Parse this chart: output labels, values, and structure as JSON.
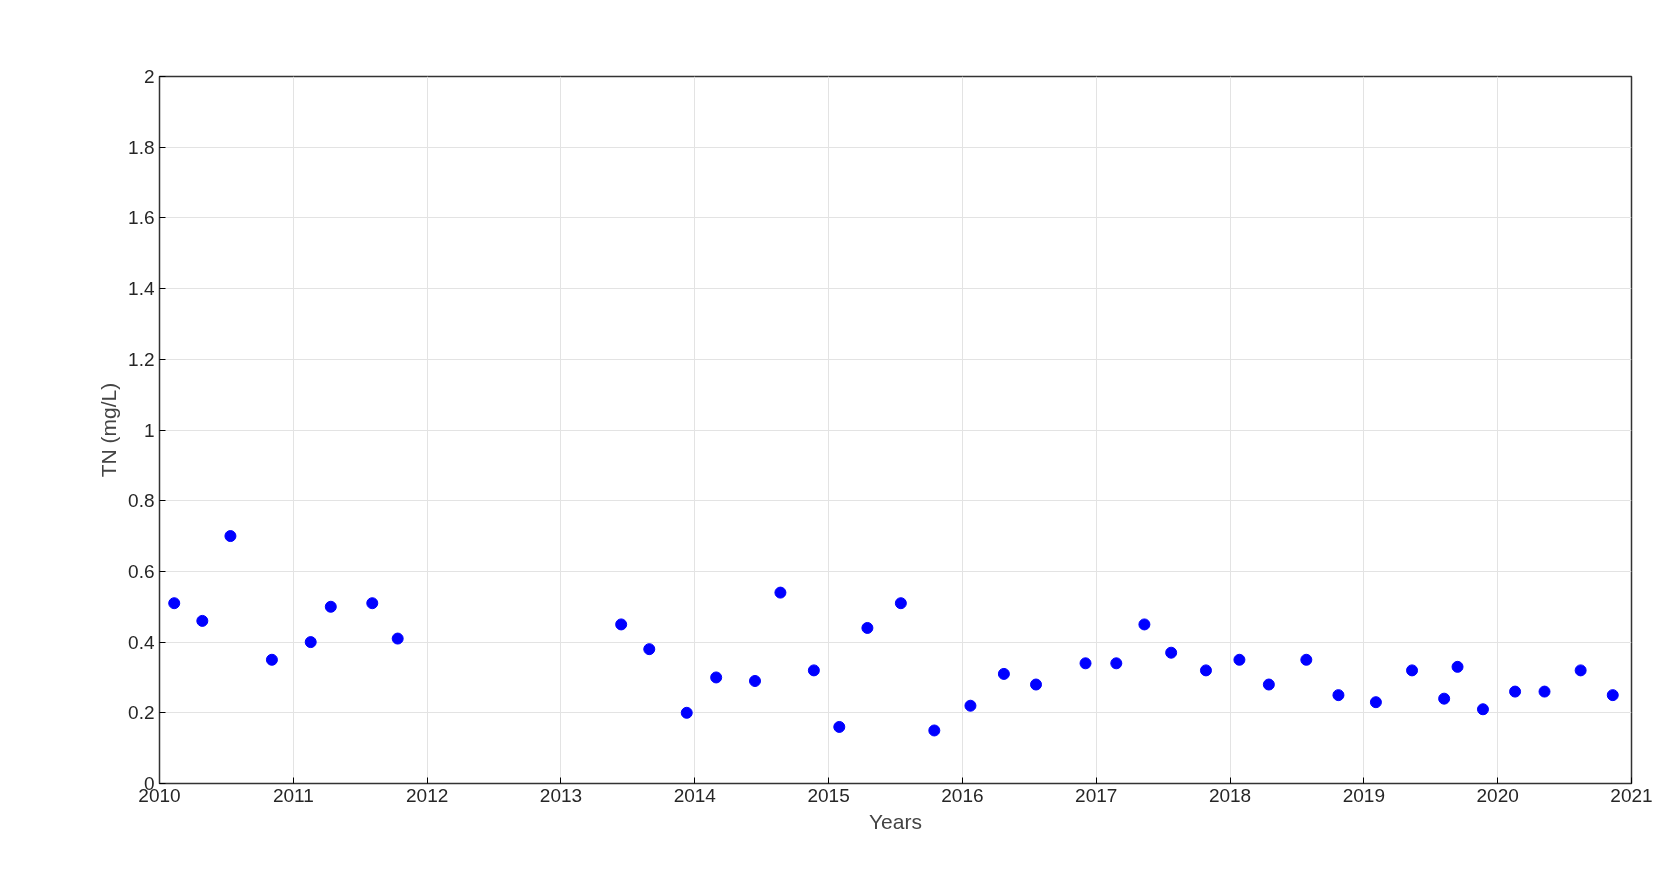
{
  "chart_data": {
    "type": "scatter",
    "xlabel": "Years",
    "ylabel": "TN (mg/L)",
    "x": [
      2010.11,
      2010.32,
      2010.53,
      2010.84,
      2011.13,
      2011.28,
      2011.59,
      2011.78,
      2013.45,
      2013.66,
      2013.94,
      2014.16,
      2014.45,
      2014.64,
      2014.89,
      2015.08,
      2015.29,
      2015.54,
      2015.79,
      2016.06,
      2016.31,
      2016.55,
      2016.92,
      2017.15,
      2017.36,
      2017.56,
      2017.82,
      2018.07,
      2018.29,
      2018.57,
      2018.81,
      2019.09,
      2019.36,
      2019.6,
      2019.7,
      2019.89,
      2020.13,
      2020.35,
      2020.62,
      2020.86
    ],
    "series": [
      {
        "color": "#0000ff",
        "values": [
          0.51,
          0.46,
          0.7,
          0.35,
          0.4,
          0.5,
          0.51,
          0.41,
          0.45,
          0.38,
          0.2,
          0.3,
          0.29,
          0.54,
          0.32,
          0.16,
          0.44,
          0.51,
          0.15,
          0.22,
          0.31,
          0.28,
          0.34,
          0.34,
          0.45,
          0.37,
          0.32,
          0.35,
          0.28,
          0.35,
          0.25,
          0.23,
          0.32,
          0.24,
          0.33,
          0.21,
          0.26,
          0.26,
          0.32,
          0.25
        ]
      }
    ],
    "xlim": [
      2010,
      2021
    ],
    "xticks": [
      2010,
      2011,
      2012,
      2013,
      2014,
      2015,
      2016,
      2017,
      2018,
      2019,
      2020,
      2021
    ],
    "ylim": [
      0,
      2
    ],
    "yticks": [
      0,
      {
        "value": 0.2,
        "label": "0.2"
      },
      {
        "value": 0.4,
        "label": "0.4"
      },
      {
        "value": 0.6,
        "label": "0.6"
      },
      {
        "value": 0.8,
        "label": "0.8"
      },
      1,
      {
        "value": 1.2,
        "label": "1.2"
      },
      {
        "value": 1.4,
        "label": "1.4"
      },
      {
        "value": 1.6,
        "label": "1.6"
      },
      {
        "value": 1.8,
        "label": "1.8"
      },
      2
    ],
    "grid": true,
    "marker": "circle"
  }
}
